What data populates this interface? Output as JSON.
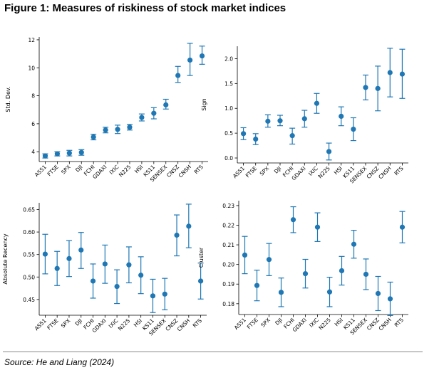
{
  "figure": {
    "title": "Figure 1: Measures of riskiness of stock market indices",
    "source": "Source: He and Liang (2024)",
    "marker_color": "#1f77b4"
  },
  "chart_data": [
    {
      "type": "scatter",
      "ylabel": "Std. Dev.",
      "categories": [
        "AS51",
        "FTSE",
        "SPX",
        "DJI",
        "FCHI",
        "GDAXI",
        "IXIC",
        "N225",
        "HSI",
        "KS11",
        "SENSEX",
        "CNSZ",
        "CNSH",
        "RTS"
      ],
      "values": [
        3.7,
        3.85,
        3.9,
        3.95,
        5.05,
        5.55,
        5.6,
        5.75,
        6.45,
        6.75,
        7.35,
        9.45,
        10.55,
        10.85
      ],
      "err_low": [
        3.55,
        3.7,
        3.7,
        3.75,
        4.85,
        5.35,
        5.3,
        5.55,
        6.2,
        6.35,
        7.05,
        8.95,
        9.45,
        10.25
      ],
      "err_high": [
        3.85,
        4.0,
        4.1,
        4.15,
        5.25,
        5.75,
        5.9,
        5.95,
        6.7,
        7.15,
        7.75,
        10.1,
        11.75,
        11.55
      ],
      "ylim": [
        3.3,
        12.2
      ],
      "yticks": [
        4,
        6,
        8,
        10,
        12
      ],
      "ytick_labels": [
        "4",
        "6",
        "8",
        "10",
        "12"
      ]
    },
    {
      "type": "scatter",
      "ylabel": "Sign",
      "categories": [
        "AS51",
        "FTSE",
        "SPX",
        "DJI",
        "FCHI",
        "GDAXI",
        "IXIC",
        "N225",
        "HSI",
        "KS11",
        "SENSEX",
        "CNSZ",
        "CNSH",
        "RTS"
      ],
      "values": [
        0.49,
        0.38,
        0.74,
        0.75,
        0.45,
        0.79,
        1.1,
        0.13,
        0.84,
        0.58,
        1.42,
        1.4,
        1.72,
        1.69
      ],
      "err_low": [
        0.37,
        0.27,
        0.62,
        0.65,
        0.28,
        0.62,
        0.9,
        -0.04,
        0.65,
        0.35,
        1.17,
        0.95,
        1.23,
        1.2
      ],
      "err_high": [
        0.61,
        0.49,
        0.87,
        0.86,
        0.6,
        0.96,
        1.3,
        0.3,
        1.03,
        0.81,
        1.67,
        1.85,
        2.21,
        2.19
      ],
      "ylim": [
        -0.1,
        2.25
      ],
      "yticks": [
        0.0,
        0.5,
        1.0,
        1.5,
        2.0
      ],
      "ytick_labels": [
        "0.0",
        "0.5",
        "1.0",
        "1.5",
        "2.0"
      ]
    },
    {
      "type": "scatter",
      "ylabel": "Absolute Recency",
      "categories": [
        "AS51",
        "FTSE",
        "SPX",
        "DJI",
        "FCHI",
        "GDAXI",
        "IXIC",
        "N225",
        "HSI",
        "KS11",
        "SENSEX",
        "CNSZ",
        "CNSH",
        "RTS"
      ],
      "values": [
        0.551,
        0.519,
        0.541,
        0.56,
        0.491,
        0.529,
        0.479,
        0.527,
        0.504,
        0.458,
        0.462,
        0.593,
        0.613,
        0.491
      ],
      "err_low": [
        0.507,
        0.481,
        0.501,
        0.519,
        0.453,
        0.486,
        0.441,
        0.487,
        0.463,
        0.421,
        0.427,
        0.547,
        0.565,
        0.451
      ],
      "err_high": [
        0.595,
        0.557,
        0.581,
        0.599,
        0.529,
        0.571,
        0.516,
        0.567,
        0.545,
        0.495,
        0.497,
        0.638,
        0.662,
        0.531
      ],
      "ylim": [
        0.415,
        0.665
      ],
      "yticks": [
        0.45,
        0.5,
        0.55,
        0.6,
        0.65
      ],
      "ytick_labels": [
        "0.45",
        "0.50",
        "0.55",
        "0.60",
        "0.65"
      ]
    },
    {
      "type": "scatter",
      "ylabel": "Cluster",
      "categories": [
        "AS51",
        "FTSE",
        "SPX",
        "DJI",
        "FCHI",
        "GDAXI",
        "IXIC",
        "N225",
        "HSI",
        "KS11",
        "SENSEX",
        "CNSZ",
        "CNSH",
        "RTS"
      ],
      "values": [
        0.2048,
        0.1893,
        0.2025,
        0.1858,
        0.2228,
        0.1953,
        0.219,
        0.186,
        0.1968,
        0.2103,
        0.195,
        0.1852,
        0.1825,
        0.219
      ],
      "err_low": [
        0.1953,
        0.1815,
        0.1943,
        0.1785,
        0.2162,
        0.188,
        0.2117,
        0.1785,
        0.1895,
        0.2032,
        0.1872,
        0.1765,
        0.174,
        0.211
      ],
      "err_high": [
        0.2143,
        0.1971,
        0.2107,
        0.1931,
        0.2294,
        0.2026,
        0.2263,
        0.1935,
        0.2041,
        0.2174,
        0.2028,
        0.1939,
        0.191,
        0.227
      ],
      "ylim": [
        0.1745,
        0.2325
      ],
      "yticks": [
        0.18,
        0.19,
        0.2,
        0.21,
        0.22,
        0.23
      ],
      "ytick_labels": [
        "0.18",
        "0.19",
        "0.20",
        "0.21",
        "0.22",
        "0.23"
      ]
    }
  ]
}
